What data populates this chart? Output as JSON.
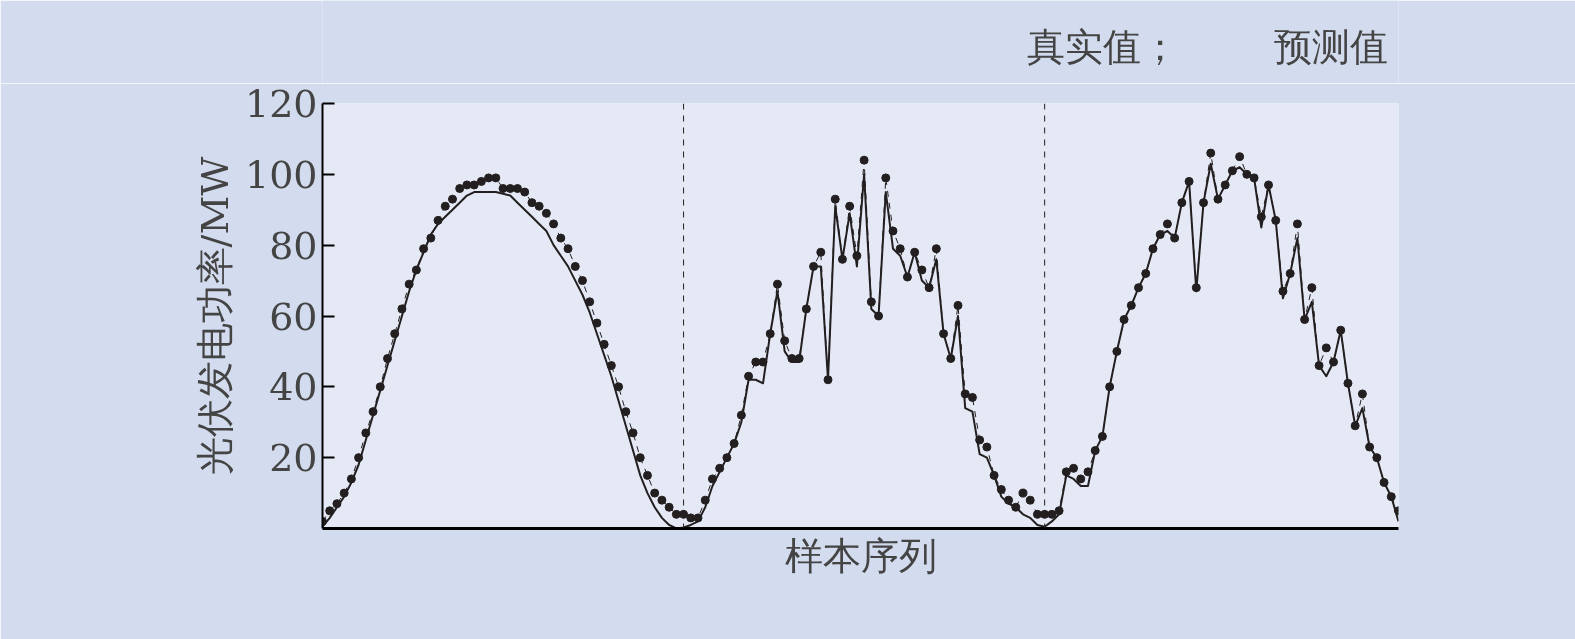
{
  "chart_data": {
    "type": "line",
    "xlabel": "样本序列",
    "ylabel": "光伏发电功率/MW",
    "categories": [
      null,
      null,
      null,
      null,
      null,
      null,
      null,
      null,
      null,
      null,
      null,
      null,
      null,
      null,
      null,
      null,
      null,
      null,
      null,
      null,
      null,
      null,
      null,
      null,
      null,
      null,
      null,
      null,
      null,
      null,
      null,
      null,
      null,
      null,
      null,
      null,
      null,
      null,
      null,
      null,
      null,
      null,
      null,
      null,
      null,
      null,
      null,
      null,
      null,
      null,
      null,
      null,
      null,
      null,
      null,
      null,
      null,
      null,
      null,
      null,
      null,
      null,
      null,
      null,
      null,
      null,
      null,
      null,
      null,
      null,
      null,
      null,
      null,
      null,
      null,
      null,
      null,
      null,
      null,
      null,
      null,
      null,
      null,
      null,
      null,
      null,
      null,
      null,
      null,
      null,
      null,
      null,
      null,
      null,
      null,
      null,
      null,
      null,
      null,
      null,
      null,
      null,
      null,
      null,
      null,
      null,
      null,
      null,
      null,
      null,
      null,
      null,
      null,
      null,
      null,
      null,
      null,
      null,
      null,
      null,
      null,
      null,
      null,
      null,
      null,
      null,
      null,
      null,
      null,
      null,
      null,
      null,
      null,
      null,
      null,
      null,
      null,
      null,
      null,
      null,
      null,
      null,
      null,
      null,
      null,
      null,
      null,
      null,
      null,
      null
    ],
    "series": [
      {
        "name": "真实值；",
        "color": "#231f20",
        "line_style": "solid",
        "marker": "none",
        "values": [
          0.5,
          3,
          6,
          9,
          13,
          18,
          25,
          32,
          39,
          46,
          53,
          60,
          67,
          73,
          78,
          83,
          86,
          88,
          90,
          92,
          94,
          95,
          95,
          95,
          95,
          94.5,
          94,
          92,
          90,
          88,
          86,
          84,
          80,
          77,
          74,
          70,
          66,
          61,
          55,
          49,
          43,
          36,
          29,
          22,
          15,
          10,
          6,
          3,
          1,
          0,
          0.3,
          1,
          2,
          6,
          12,
          16,
          20,
          24,
          30,
          42,
          42,
          41,
          55,
          67,
          50,
          47,
          47,
          62,
          74,
          74,
          42,
          91,
          76,
          89,
          74,
          100,
          62,
          60,
          95,
          79,
          77,
          71,
          78,
          70,
          68,
          76,
          55,
          48,
          60,
          34,
          33,
          21,
          20,
          15,
          9,
          7,
          6,
          4,
          3,
          1,
          0.5,
          2,
          4,
          15,
          14,
          12,
          12,
          22,
          26,
          40,
          50,
          59,
          63,
          68,
          72,
          79,
          83,
          84,
          82,
          92,
          98,
          67,
          92,
          103,
          93,
          97,
          101,
          102,
          100,
          99,
          85,
          97,
          87,
          65,
          72,
          82,
          59,
          64,
          46,
          43,
          47,
          56,
          41,
          29,
          34,
          23,
          20,
          13,
          9,
          2
        ]
      },
      {
        "name": "预测值",
        "color": "#231f20",
        "line_style": "dashed",
        "marker": "circle",
        "values": [
          2,
          5,
          7,
          10,
          14,
          20,
          27,
          33,
          40,
          48,
          55,
          62,
          69,
          73,
          79,
          82,
          87,
          91,
          93,
          96,
          97,
          97,
          98,
          99,
          99,
          96,
          96,
          96,
          95,
          92,
          91,
          89,
          86,
          82,
          79,
          74,
          70,
          64,
          58,
          52,
          46,
          40,
          33,
          27,
          20,
          15,
          10,
          8,
          6,
          4,
          4,
          3,
          3,
          8,
          14,
          17,
          20,
          24,
          32,
          43,
          47,
          47,
          55,
          69,
          53,
          48,
          48,
          62,
          74,
          78,
          42,
          93,
          76,
          91,
          77,
          104,
          64,
          60,
          99,
          84,
          79,
          71,
          78,
          73,
          68,
          79,
          55,
          48,
          63,
          38,
          37,
          25,
          23,
          15,
          11,
          8,
          6,
          10,
          8,
          4,
          4,
          4,
          5,
          16,
          17,
          14,
          16,
          22,
          26,
          40,
          50,
          59,
          63,
          68,
          72,
          79,
          83,
          86,
          82,
          92,
          98,
          68,
          92,
          106,
          93,
          97,
          101,
          105,
          100,
          99,
          88,
          97,
          87,
          67,
          72,
          86,
          59,
          68,
          46,
          51,
          47,
          56,
          41,
          29,
          38,
          23,
          20,
          13,
          9,
          5
        ]
      }
    ],
    "ylim": [
      0,
      120
    ],
    "yticks": [
      20,
      40,
      60,
      80,
      100,
      120
    ],
    "grid": false,
    "legend": "top right"
  }
}
